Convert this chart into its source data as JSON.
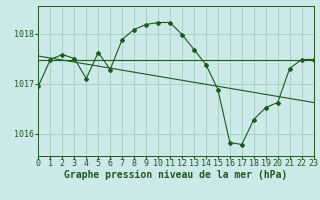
{
  "title": "Graphe pression niveau de la mer (hPa)",
  "bg_color": "#cce8e8",
  "line_color": "#1a5c1a",
  "grid_color": "#99ccbb",
  "x_min": 0,
  "x_max": 23,
  "y_min": 1015.55,
  "y_max": 1018.55,
  "y_ticks": [
    1016,
    1017,
    1018
  ],
  "x_ticks": [
    0,
    1,
    2,
    3,
    4,
    5,
    6,
    7,
    8,
    9,
    10,
    11,
    12,
    13,
    14,
    15,
    16,
    17,
    18,
    19,
    20,
    21,
    22,
    23
  ],
  "series1_x": [
    0,
    1,
    2,
    3,
    4,
    5,
    6,
    7,
    8,
    9,
    10,
    11,
    12,
    13,
    14,
    15,
    16,
    17,
    18,
    19,
    20,
    21,
    22,
    23
  ],
  "series1_y": [
    1016.95,
    1017.48,
    1017.58,
    1017.5,
    1017.1,
    1017.62,
    1017.28,
    1017.88,
    1018.08,
    1018.18,
    1018.22,
    1018.22,
    1017.98,
    1017.68,
    1017.38,
    1016.88,
    1015.82,
    1015.78,
    1016.28,
    1016.52,
    1016.62,
    1017.3,
    1017.48,
    1017.48
  ],
  "series2_x": [
    0,
    23
  ],
  "series2_y": [
    1017.48,
    1017.48
  ],
  "series3_x": [
    0,
    23
  ],
  "series3_y": [
    1017.55,
    1016.62
  ],
  "title_fontsize": 7,
  "tick_fontsize": 6
}
